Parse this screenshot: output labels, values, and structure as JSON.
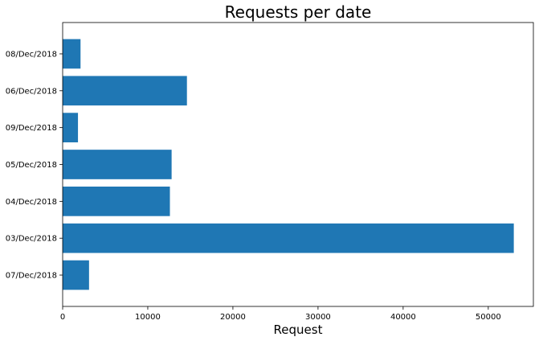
{
  "chart_data": {
    "type": "bar",
    "orientation": "horizontal",
    "title": "Requests per date",
    "xlabel": "Request",
    "ylabel": "",
    "categories": [
      "07/Dec/2018",
      "03/Dec/2018",
      "04/Dec/2018",
      "05/Dec/2018",
      "09/Dec/2018",
      "06/Dec/2018",
      "08/Dec/2018"
    ],
    "values": [
      3100,
      53000,
      12600,
      12800,
      1800,
      14600,
      2100
    ],
    "xlim": [
      0,
      55300
    ],
    "xticks": [
      0,
      10000,
      20000,
      30000,
      40000,
      50000
    ],
    "xtick_labels": [
      "0",
      "10000",
      "20000",
      "30000",
      "40000",
      "50000"
    ],
    "bar_color": "#1f77b4",
    "grid": false
  }
}
